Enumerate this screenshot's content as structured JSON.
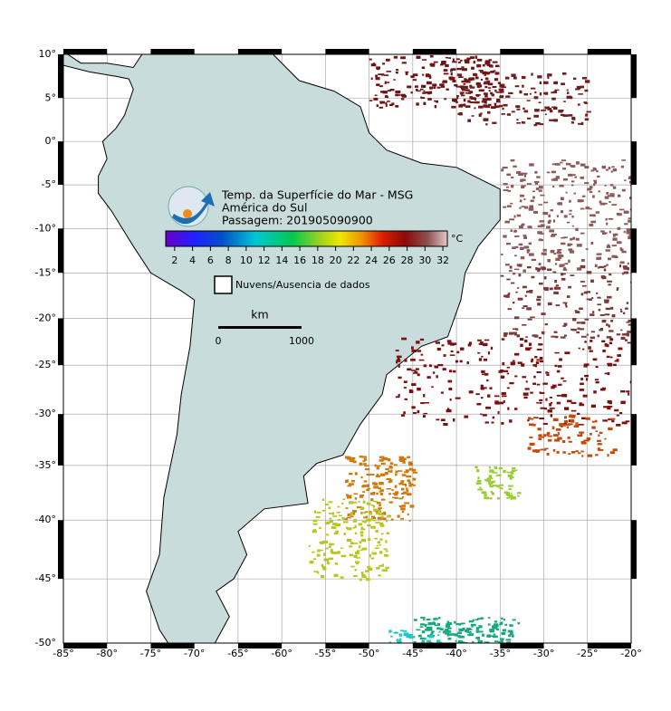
{
  "header": {
    "title": "Temp. da Superfície do Mar - MSG",
    "region": "América do Sul",
    "pass": "Passagem: 201905090900"
  },
  "colorbar": {
    "unit": "°C",
    "clim": [
      1,
      32.5
    ],
    "ticks": [
      2,
      4,
      6,
      8,
      10,
      12,
      14,
      16,
      18,
      20,
      22,
      24,
      26,
      28,
      30,
      32
    ]
  },
  "legend": {
    "clouds": "Nuvens/Ausencia de dados"
  },
  "scale": {
    "unit": "km",
    "start": "0",
    "end": "1000"
  },
  "map": {
    "xlim": [
      -85,
      -20
    ],
    "ylim": [
      -50,
      10
    ],
    "xticks": [
      {
        "value": -85,
        "label": "-85°"
      },
      {
        "value": -80,
        "label": "-80°"
      },
      {
        "value": -75,
        "label": "-75°"
      },
      {
        "value": -70,
        "label": "-70°"
      },
      {
        "value": -65,
        "label": "-65°"
      },
      {
        "value": -60,
        "label": "-60°"
      },
      {
        "value": -55,
        "label": "-55°"
      },
      {
        "value": -50,
        "label": "-50°"
      },
      {
        "value": -45,
        "label": "-45°"
      },
      {
        "value": -40,
        "label": "-40°"
      },
      {
        "value": -35,
        "label": "-35°"
      },
      {
        "value": -30,
        "label": "-30°"
      },
      {
        "value": -25,
        "label": "-25°"
      },
      {
        "value": -20,
        "label": "-20°"
      }
    ],
    "yticks": [
      {
        "value": 10,
        "label": "10°"
      },
      {
        "value": 5,
        "label": "5°"
      },
      {
        "value": 0,
        "label": "0°"
      },
      {
        "value": -5,
        "label": "-5°"
      },
      {
        "value": -10,
        "label": "-10°"
      },
      {
        "value": -15,
        "label": "-15°"
      },
      {
        "value": -20,
        "label": "-20°"
      },
      {
        "value": -25,
        "label": "-25°"
      },
      {
        "value": -30,
        "label": "-30°"
      },
      {
        "value": -35,
        "label": "-35°"
      },
      {
        "value": -40,
        "label": "-40°"
      },
      {
        "value": -45,
        "label": "-45°"
      },
      {
        "value": -50,
        "label": "-50°"
      }
    ]
  }
}
